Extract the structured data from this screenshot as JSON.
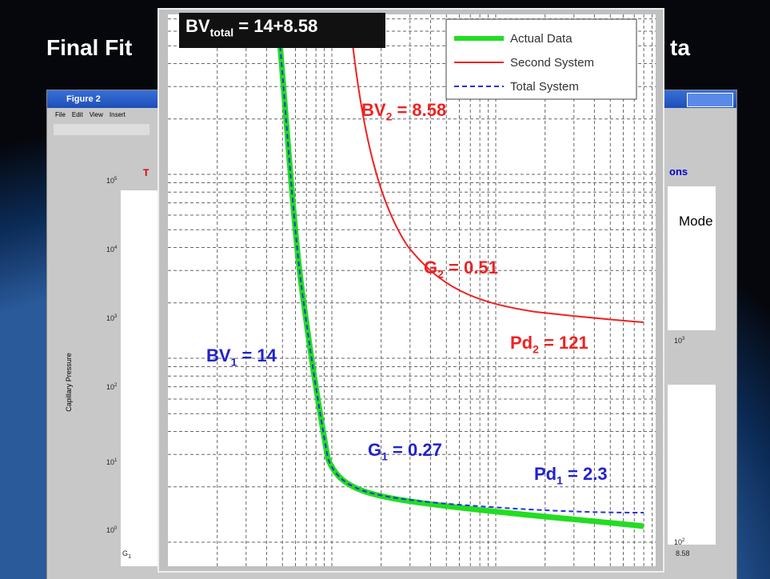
{
  "slide": {
    "title_left": "Final Fit",
    "title_right": "ta"
  },
  "window": {
    "title": "Figure 2",
    "menu": [
      "File",
      "Edit",
      "View",
      "Insert"
    ],
    "left_title": "T",
    "right_title": "ons",
    "y_label": "Capillary Pressure",
    "mode": "Mode",
    "y_ticks": [
      {
        "base": "10",
        "exp": "5"
      },
      {
        "base": "10",
        "exp": "4"
      },
      {
        "base": "10",
        "exp": "3"
      },
      {
        "base": "10",
        "exp": "2"
      },
      {
        "base": "10",
        "exp": "1"
      },
      {
        "base": "10",
        "exp": "0"
      }
    ],
    "right_ticks": [
      {
        "base": "10",
        "exp": "3"
      },
      {
        "base": "10",
        "exp": "2"
      }
    ],
    "right_value": "8.58",
    "corner": {
      "base": "G",
      "sub": "1"
    }
  },
  "overlay": {
    "annotations": [
      {
        "base": "BV",
        "sub": "total",
        "text": " = 14+8.58"
      },
      {
        "base": "BV",
        "sub": "2",
        "text": " = 8.58"
      },
      {
        "base": "G",
        "sub": "2",
        "text": " = 0.51"
      },
      {
        "base": "Pd",
        "sub": "2",
        "text": " = 121"
      },
      {
        "base": "BV",
        "sub": "1",
        "text": " = 14"
      },
      {
        "base": "G",
        "sub": "1",
        "text": " = 0.27"
      },
      {
        "base": "Pd",
        "sub": "1",
        "text": " = 2.3"
      }
    ],
    "legend": [
      {
        "label": "Actual Data"
      },
      {
        "label": "Second System"
      },
      {
        "label": "Total System"
      }
    ]
  }
}
